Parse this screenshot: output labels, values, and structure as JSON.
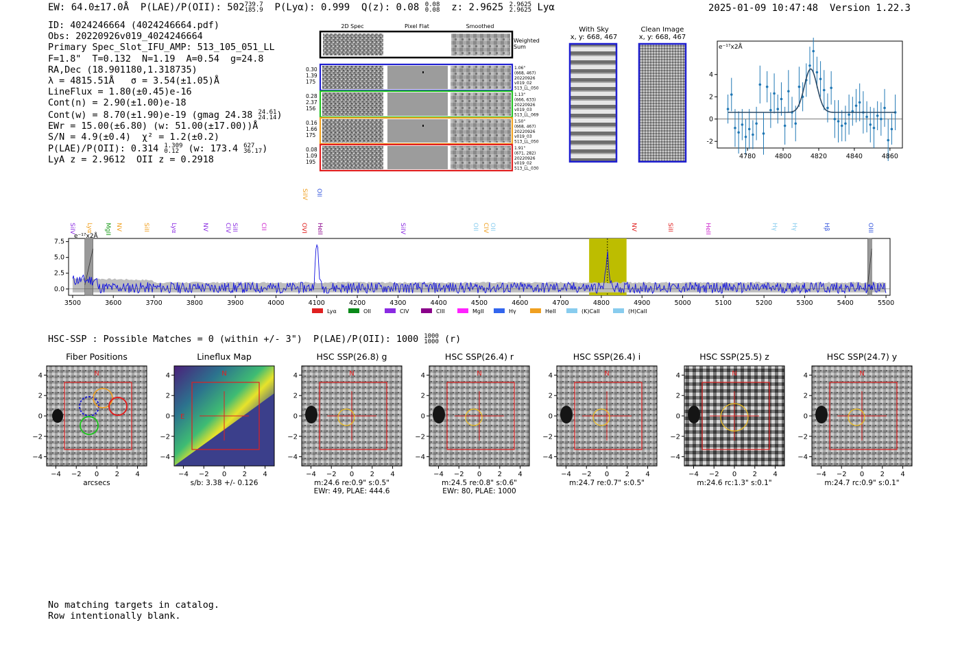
{
  "header": {
    "ew": "EW: 64.0±17.0Å",
    "plae_label": "P(LAE)/P(OII): 502",
    "plae_hi": "739.7",
    "plae_lo": "185.9",
    "plya": "P(Lyα): 0.999",
    "qz_label": "Q(z): 0.08",
    "qz_hi": "0.08",
    "qz_lo": "0.08",
    "z_label": "z: 2.9625",
    "z_hi": "2.9625",
    "z_lo": "2.9625",
    "line": "Lyα",
    "timestamp": "2025-01-09 10:47:48",
    "version": "Version 1.22.3"
  },
  "info": {
    "id": "ID: 4024246664 (4024246664.pdf)",
    "obs": "Obs: 20220926v019_4024246664",
    "primary": "Primary Spec_Slot_IFU_AMP: 513_105_051_LL",
    "fparams": "F=1.8\"  T=0.132  N=1.19  A=0.54  g=24.8",
    "radec": "RA,Dec (18.901180,1.318735)",
    "lambda": "λ = 4815.51Å   σ = 3.54(±1.05)Å",
    "lineflux": "LineFlux = 1.80(±0.45)e-16",
    "contn": "Cont(n) = 2.90(±1.00)e-18",
    "contw": "Cont(w) = 8.70(±1.90)e-19 (gmag 24.38",
    "contw_hi": "24.61",
    "contw_lo": "24.14",
    "contw_end": ")",
    "ewr": "EWr = 15.00(±6.80) (w: 51.00(±17.00))Å",
    "sn": "S/N = 4.9(±0.4)  χ² = 1.2(±0.2)",
    "plae": "P(LAE)/P(OII): 0.314",
    "plae_hi": "1.309",
    "plae_lo": "0.12",
    "plae_w": "(w: 173.4",
    "plae_w_hi": "627",
    "plae_w_lo": "36.17",
    "plae_end": ")",
    "lyaz": "LyA z = 2.9612  OII z = 0.2918"
  },
  "cutouts": {
    "col_2d": "2D Spec",
    "col_flat": "Pixel Flat",
    "col_smooth": "Smoothed",
    "weighted_a": "Weighted",
    "weighted_b": "Sum",
    "rows": [
      {
        "left": [
          "0.30",
          "1.39",
          "175"
        ],
        "right": [
          "1.06\"",
          "(668, 467)",
          "20220926",
          "v019_02",
          "513_LL_050"
        ],
        "color": "#1f1fd0"
      },
      {
        "left": [
          "0.28",
          "2.37",
          "156"
        ],
        "right": [
          "1.13\"",
          "(666, 633)",
          "20220926",
          "v019_03",
          "513_LL_069"
        ],
        "color": "#22c022"
      },
      {
        "left": [
          "0.16",
          "1.66",
          "175"
        ],
        "right": [
          "1.50\"",
          "(668, 467)",
          "20220926",
          "v019_03",
          "513_LL_050"
        ],
        "color": "#f0a020"
      },
      {
        "left": [
          "0.08",
          "1.09",
          "195"
        ],
        "right": [
          "1.91\"",
          "(671, 282)",
          "20220926",
          "v019_02",
          "513_LL_030"
        ],
        "color": "#e02020"
      }
    ]
  },
  "sky": {
    "with_sky": "With Sky",
    "with_sky_xy": "x, y: 668, 467",
    "clean": "Clean Image",
    "clean_xy": "x, y: 668, 467"
  },
  "zoom_chart": {
    "ylabel": "e⁻¹⁷x2Å",
    "xticks": [
      "4780",
      "4800",
      "4820",
      "4840",
      "4860"
    ],
    "yticks": [
      "-2",
      "0",
      "2",
      "4"
    ]
  },
  "full_chart": {
    "ylabel": "e⁻¹⁷x2Å",
    "xticks": [
      "3500",
      "3600",
      "3700",
      "3800",
      "3900",
      "4000",
      "4100",
      "4200",
      "4300",
      "4400",
      "4500",
      "4600",
      "4700",
      "4800",
      "4900",
      "5000",
      "5100",
      "5200",
      "5300",
      "5400",
      "5500"
    ],
    "yticks": [
      "0.0",
      "2.5",
      "5.0",
      "7.5"
    ],
    "line_markers": [
      {
        "label": "SiIV",
        "color": "#8a2be2"
      },
      {
        "label": "Lyα",
        "color": "#f0a020"
      },
      {
        "label": "MgII",
        "color": "#1a9a1a"
      },
      {
        "label": "NV",
        "color": "#f0a020"
      },
      {
        "label": "SiII",
        "color": "#f0a020"
      },
      {
        "label": "Lyα",
        "color": "#8a2be2"
      },
      {
        "label": "NV",
        "color": "#8a2be2"
      },
      {
        "label": "CIV",
        "color": "#8a2be2"
      },
      {
        "label": "SiII",
        "color": "#8a2be2"
      },
      {
        "label": "CII",
        "color": "#cc22cc"
      },
      {
        "label": "SiIV",
        "color": "#f0a020"
      },
      {
        "label": "OII",
        "color": "#3355dd"
      },
      {
        "label": "OVI",
        "color": "#e02020"
      },
      {
        "label": "HeII",
        "color": "#8a008a"
      },
      {
        "label": "SiIV",
        "color": "#8a2be2"
      },
      {
        "label": "OII",
        "color": "#88ccee"
      },
      {
        "label": "CIV",
        "color": "#f0a020"
      },
      {
        "label": "OII",
        "color": "#88ccee"
      },
      {
        "label": "NV",
        "color": "#e02020"
      },
      {
        "label": "SiII",
        "color": "#e02020"
      },
      {
        "label": "HeII",
        "color": "#cc22cc"
      },
      {
        "label": "Hγ",
        "color": "#88ccee"
      },
      {
        "label": "Hγ",
        "color": "#88ccee"
      },
      {
        "label": "Hβ",
        "color": "#3355dd"
      },
      {
        "label": "OIII",
        "color": "#3355dd"
      }
    ],
    "legend": [
      {
        "label": "Lyα",
        "color": "#e02020"
      },
      {
        "label": "OII",
        "color": "#0a8a1a"
      },
      {
        "label": "CIV",
        "color": "#8a2be2"
      },
      {
        "label": "CIII",
        "color": "#8a008a"
      },
      {
        "label": "MgII",
        "color": "#ff22ff"
      },
      {
        "label": "Hγ",
        "color": "#3366ee"
      },
      {
        "label": "HeII",
        "color": "#f0a020"
      },
      {
        "label": "(K)CaII",
        "color": "#88ccee"
      },
      {
        "label": "(H)CaII",
        "color": "#88ccee"
      }
    ]
  },
  "hsc": {
    "heading": "HSC-SSP : Possible Matches = 0 (within +/- 3\")  P(LAE)/P(OII): 1000",
    "heading_hi": "1000",
    "heading_lo": "1000",
    "heading_end": "(r)",
    "panels": [
      {
        "title": "Fiber Positions",
        "cap1": "arcsecs",
        "cap2": ""
      },
      {
        "title": "Lineflux Map",
        "cap1": "s/b: 3.38 +/- 0.126",
        "cap2": ""
      },
      {
        "title": "HSC SSP(26.8) g",
        "cap1": "m:24.6  re:0.9\"  s:0.5\"",
        "cap2": "EWr: 49, PLAE: 444.6"
      },
      {
        "title": "HSC SSP(26.4) r",
        "cap1": "m:24.5  re:0.8\"  s:0.6\"",
        "cap2": "EWr: 80, PLAE: 1000"
      },
      {
        "title": "HSC SSP(26.4) i",
        "cap1": "m:24.7  re:0.7\"  s:0.5\"",
        "cap2": ""
      },
      {
        "title": "HSC SSP(25.5) z",
        "cap1": "m:24.6  rc:1.3\"  s:0.1\"",
        "cap2": ""
      },
      {
        "title": "HSC SSP(24.7) y",
        "cap1": "m:24.7  rc:0.9\"  s:0.1\"",
        "cap2": ""
      }
    ],
    "axis_ticks": [
      "-4",
      "-2",
      "0",
      "2",
      "4"
    ],
    "north": "N",
    "east": "E"
  },
  "note": {
    "line1": "No matching targets in catalog.",
    "line2": "Row intentionally blank."
  },
  "chart_data": [
    {
      "type": "scatter",
      "title": "",
      "xlabel": "",
      "ylabel": "e⁻¹⁷x2Å",
      "xlim": [
        4763,
        4867
      ],
      "ylim": [
        -2.6,
        7.0
      ],
      "x": [
        4769,
        4771,
        4773,
        4775,
        4777,
        4779,
        4781,
        4783,
        4785,
        4787,
        4789,
        4791,
        4793,
        4795,
        4797,
        4799,
        4801,
        4803,
        4805,
        4807,
        4809,
        4811,
        4813,
        4815,
        4817,
        4819,
        4821,
        4823,
        4825,
        4827,
        4829,
        4831,
        4833,
        4835,
        4837,
        4839,
        4841,
        4843,
        4845,
        4847,
        4849,
        4851,
        4853,
        4855,
        4857,
        4859,
        4861,
        4863
      ],
      "y": [
        0.9,
        2.2,
        -0.8,
        -1.2,
        -0.5,
        -1.6,
        -0.9,
        -1.4,
        -0.4,
        3.1,
        -1.3,
        2.9,
        0.8,
        2.3,
        0.9,
        1.8,
        -0.6,
        2.5,
        0.6,
        -0.4,
        2.9,
        2.0,
        3.5,
        4.8,
        6.1,
        4.2,
        3.6,
        2.6,
        1.0,
        2.8,
        0.0,
        -0.2,
        -0.6,
        -0.4,
        0.4,
        0.7,
        1.2,
        1.5,
        0.6,
        0.2,
        -0.5,
        -0.8,
        0.3,
        0.0,
        1.0,
        -1.9,
        -0.9,
        0.6
      ],
      "fit": {
        "continuum": 0.6,
        "amplitude": 3.9,
        "center": 4815.5,
        "sigma": 3.54
      }
    },
    {
      "type": "line",
      "title": "",
      "xlabel": "",
      "ylabel": "e⁻¹⁷x2Å",
      "xlim": [
        3490,
        5510
      ],
      "ylim": [
        -1.0,
        8.0
      ],
      "highlight_window": [
        4770,
        4862
      ],
      "masked_windows": [
        [
          3530,
          3550
        ],
        [
          5455,
          5465
        ]
      ],
      "emission_peaks": [
        {
          "x": 4101,
          "y": 7.3
        },
        {
          "x": 4815,
          "y": 5.5
        }
      ],
      "noise_continuum": 0.8
    }
  ]
}
